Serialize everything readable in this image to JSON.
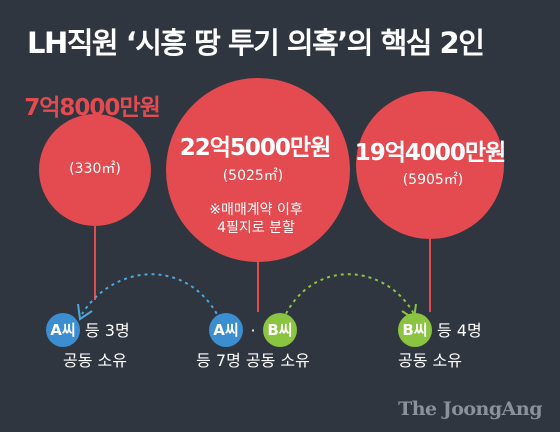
{
  "title": "LH직원 ‘시흥 땅 투기 의혹’의 핵심 2인",
  "colors": {
    "background": "#2f3640",
    "circle": "#e34b50",
    "badge_a": "#3b8fd0",
    "badge_b": "#8ac440",
    "arrow_a": "#4aa7df",
    "arrow_b": "#8ac440",
    "credit": "#8a919b"
  },
  "parcels": [
    {
      "price": "7억8000만원",
      "area": "(330㎡)",
      "note": []
    },
    {
      "price": "22억5000만원",
      "area": "(5025㎡)",
      "note": [
        "※매매계약 이후",
        "4필지로 분할"
      ]
    },
    {
      "price": "19억4000만원",
      "area": "(5905㎡)",
      "note": []
    }
  ],
  "owners": [
    {
      "badges": [
        "A씨"
      ],
      "line1": "등 3명",
      "line2": "공동 소유"
    },
    {
      "badges": [
        "A씨",
        "B씨"
      ],
      "separator": "·",
      "line1": "",
      "line2": "등 7명 공동 소유"
    },
    {
      "badges": [
        "B씨"
      ],
      "line1": "등 4명",
      "line2": "공동 소유"
    }
  ],
  "credit": "The JoongAng"
}
